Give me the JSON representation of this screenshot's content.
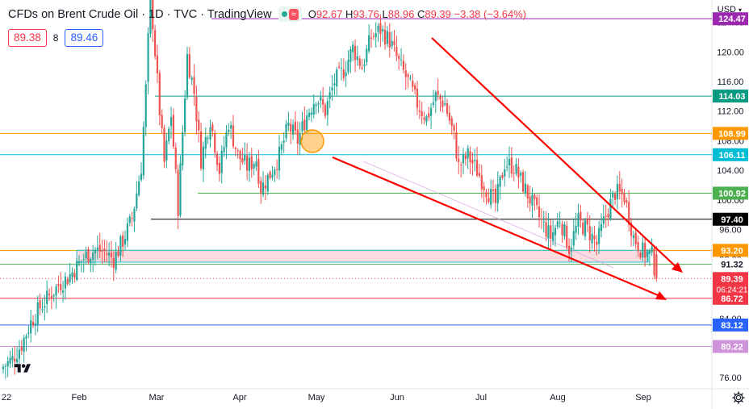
{
  "header": {
    "title": "CFDs on Brent Crude Oil · 1D · TVC · TradingView",
    "ohlc": {
      "o_label": "O",
      "o": "92.67",
      "h_label": "H",
      "h": "93.76",
      "l_label": "L",
      "l": "88.96",
      "c_label": "C",
      "c": "89.39",
      "change": "−3.38 (−3.64%)"
    },
    "pill_wave": "≈"
  },
  "quotes": {
    "sell": "89.38",
    "spread": "8",
    "buy": "89.46"
  },
  "currency": "USD",
  "currency_chevron": "▾",
  "chart_data": {
    "type": "candlestick",
    "title": "CFDs on Brent Crude Oil · 1D · TVC",
    "symbol": "Brent Crude Oil CFD",
    "interval": "1D",
    "x_labels": [
      "22",
      "Feb",
      "Mar",
      "Apr",
      "May",
      "Jun",
      "Jul",
      "Aug",
      "Sep"
    ],
    "y_ticks": [
      76,
      80,
      84,
      88,
      92,
      96,
      100,
      104,
      108,
      112,
      116,
      120,
      124
    ],
    "ylim": [
      74.5,
      127
    ],
    "last": {
      "open": 92.67,
      "high": 93.76,
      "low": 88.96,
      "close": 89.39,
      "change": -3.38,
      "change_pct": -3.64
    },
    "countdown": "06:24:21",
    "close_path": [
      [
        0,
        77.5
      ],
      [
        4,
        78.5
      ],
      [
        8,
        80.5
      ],
      [
        12,
        83.5
      ],
      [
        16,
        85.5
      ],
      [
        20,
        87.0
      ],
      [
        24,
        88.5
      ],
      [
        28,
        89.5
      ],
      [
        32,
        91.0
      ],
      [
        36,
        92.5
      ],
      [
        40,
        93.2
      ],
      [
        44,
        93.0
      ],
      [
        48,
        92.0
      ],
      [
        52,
        94.5
      ],
      [
        56,
        97.5
      ],
      [
        60,
        104.5
      ],
      [
        62,
        115.0
      ],
      [
        64,
        128.0
      ],
      [
        66,
        120.0
      ],
      [
        68,
        112.0
      ],
      [
        70,
        105.0
      ],
      [
        73,
        111.5
      ],
      [
        76,
        99.0
      ],
      [
        80,
        119.5
      ],
      [
        83,
        114.5
      ],
      [
        86,
        105.5
      ],
      [
        90,
        111.0
      ],
      [
        94,
        104.0
      ],
      [
        98,
        110.5
      ],
      [
        102,
        106.0
      ],
      [
        106,
        104.5
      ],
      [
        110,
        105.5
      ],
      [
        112,
        101.5
      ],
      [
        116,
        103.5
      ],
      [
        120,
        106.0
      ],
      [
        124,
        110.0
      ],
      [
        128,
        108.0
      ],
      [
        132,
        111.5
      ],
      [
        136,
        114.0
      ],
      [
        140,
        112.0
      ],
      [
        144,
        116.0
      ],
      [
        148,
        117.5
      ],
      [
        152,
        120.5
      ],
      [
        156,
        118.0
      ],
      [
        160,
        122.0
      ],
      [
        164,
        123.0
      ],
      [
        168,
        121.5
      ],
      [
        172,
        118.5
      ],
      [
        176,
        116.0
      ],
      [
        180,
        113.0
      ],
      [
        184,
        111.0
      ],
      [
        188,
        114.0
      ],
      [
        192,
        113.0
      ],
      [
        196,
        108.5
      ],
      [
        198,
        104.5
      ],
      [
        202,
        106.0
      ],
      [
        206,
        104.0
      ],
      [
        210,
        101.5
      ],
      [
        214,
        99.5
      ],
      [
        218,
        105.0
      ],
      [
        222,
        104.5
      ],
      [
        226,
        102.0
      ],
      [
        230,
        99.5
      ],
      [
        234,
        97.0
      ],
      [
        238,
        95.0
      ],
      [
        242,
        97.5
      ],
      [
        246,
        93.5
      ],
      [
        250,
        97.0
      ],
      [
        254,
        96.0
      ],
      [
        258,
        94.0
      ],
      [
        262,
        98.0
      ],
      [
        266,
        101.0
      ],
      [
        270,
        100.5
      ],
      [
        274,
        95.0
      ],
      [
        278,
        93.0
      ],
      [
        282,
        92.5
      ],
      [
        284,
        89.4
      ]
    ],
    "levels": [
      {
        "price": 124.47,
        "label": "124.47",
        "color": "#9c27b0"
      },
      {
        "price": 114.03,
        "label": "114.03",
        "color": "#089981"
      },
      {
        "price": 108.99,
        "label": "108.99",
        "color": "#ff9800"
      },
      {
        "price": 106.11,
        "label": "106.11",
        "color": "#00bcd4"
      },
      {
        "price": 100.92,
        "label": "100.92",
        "color": "#4caf50"
      },
      {
        "price": 97.4,
        "label": "97.40",
        "color": "#000000"
      },
      {
        "price": 93.2,
        "label": "93.20",
        "color": "#ff9800"
      },
      {
        "price": 91.32,
        "label": "91.32",
        "color": "#4caf50"
      },
      {
        "price": 86.72,
        "label": "86.72",
        "color": "#f23645"
      },
      {
        "price": 83.12,
        "label": "83.12",
        "color": "#2962ff"
      },
      {
        "price": 80.22,
        "label": "80.22",
        "color": "#ce93d8"
      }
    ],
    "current_price": {
      "price": 89.39,
      "label": "89.39",
      "color": "#f23645"
    },
    "zone": {
      "top": 93.2,
      "bottom": 91.6,
      "fill": "#f8d7da",
      "stroke": "#00bcd4"
    },
    "colors": {
      "up": "#26a69a",
      "down": "#ef5350",
      "trendline": "#ff0000",
      "marker": "#ff9800"
    }
  }
}
